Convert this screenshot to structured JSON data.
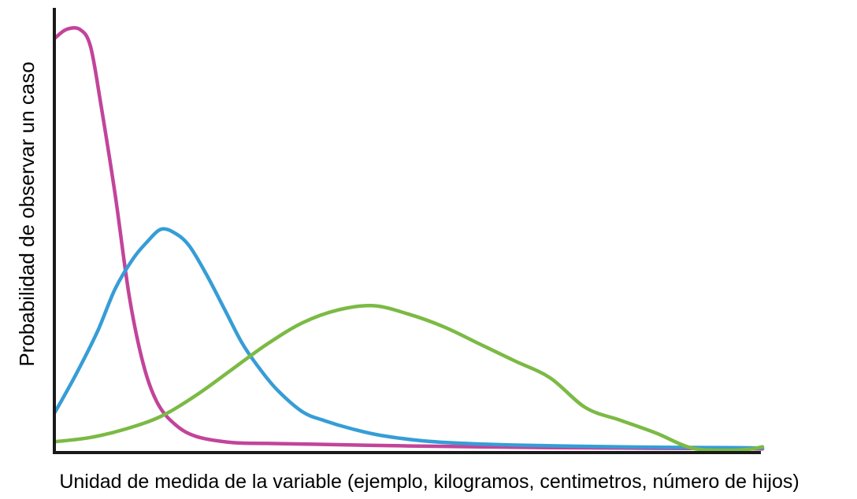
{
  "chart_data": {
    "type": "line",
    "title": "",
    "xlabel": "Unidad de medida de la variable (ejemplo, kilogramos, centimetros, número de hijos)",
    "ylabel": "Probabilidad de observar un caso",
    "xlim": [
      0,
      100
    ],
    "ylim": [
      0,
      100
    ],
    "x_ticks": false,
    "y_ticks": false,
    "grid": false,
    "legend": "none",
    "series": [
      {
        "color": "#C2449A",
        "points": [
          [
            0,
            97
          ],
          [
            1.6,
            99
          ],
          [
            3.5,
            99
          ],
          [
            5,
            95
          ],
          [
            6.5,
            81
          ],
          [
            8.5,
            60
          ],
          [
            10.5,
            36
          ],
          [
            12.5,
            20
          ],
          [
            14.5,
            11
          ],
          [
            17,
            6
          ],
          [
            20,
            3.2
          ],
          [
            25,
            1.8
          ],
          [
            30,
            1.6
          ],
          [
            40,
            1.3
          ],
          [
            50,
            1.0
          ],
          [
            60,
            0.8
          ],
          [
            70,
            0.6
          ],
          [
            80,
            0.5
          ],
          [
            90,
            0.4
          ],
          [
            100,
            0.3
          ]
        ]
      },
      {
        "color": "#369DD6",
        "points": [
          [
            0,
            9
          ],
          [
            3,
            18
          ],
          [
            6,
            28
          ],
          [
            8.5,
            38
          ],
          [
            11,
            45
          ],
          [
            13,
            49
          ],
          [
            15,
            52
          ],
          [
            17,
            51
          ],
          [
            19,
            48
          ],
          [
            21.5,
            41
          ],
          [
            24,
            33
          ],
          [
            26.5,
            25
          ],
          [
            29,
            19
          ],
          [
            31.5,
            14
          ],
          [
            35,
            9
          ],
          [
            38,
            7
          ],
          [
            42,
            5
          ],
          [
            46,
            3.5
          ],
          [
            52,
            2.2
          ],
          [
            58,
            1.6
          ],
          [
            65,
            1.2
          ],
          [
            75,
            0.9
          ],
          [
            85,
            0.7
          ],
          [
            95,
            0.6
          ],
          [
            100,
            0.5
          ]
        ]
      },
      {
        "color": "#7BBA44",
        "points": [
          [
            0,
            2
          ],
          [
            5,
            3
          ],
          [
            10,
            5
          ],
          [
            15,
            8
          ],
          [
            20,
            13
          ],
          [
            25,
            19
          ],
          [
            30,
            25
          ],
          [
            35,
            30
          ],
          [
            40,
            33
          ],
          [
            45,
            34
          ],
          [
            50,
            32
          ],
          [
            55,
            29
          ],
          [
            60,
            25
          ],
          [
            65,
            21
          ],
          [
            70,
            17
          ],
          [
            75,
            10
          ],
          [
            80,
            7
          ],
          [
            85,
            4
          ],
          [
            90,
            0.5
          ],
          [
            95,
            0
          ],
          [
            98,
            0.2
          ],
          [
            100,
            0.8
          ]
        ]
      }
    ]
  }
}
